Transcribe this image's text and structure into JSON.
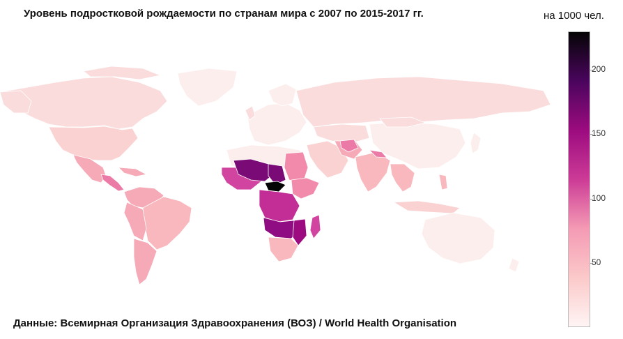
{
  "title": "Уровень подростковой рождаемости по странам мира с 2007 по 2015-2017 гг.",
  "source": "Данные: Всемирная Организация Здравоохранения (ВОЗ) / World Health Organisation",
  "legend": {
    "unit": "на 1000 чел.",
    "ticks": [
      "50",
      "100",
      "150",
      "200"
    ],
    "tick_values": [
      50,
      100,
      150,
      200
    ],
    "range": [
      0,
      230
    ],
    "colors": [
      "#fff4f4",
      "#fbc9c9",
      "#f49ab4",
      "#cc3b96",
      "#9c0b7f",
      "#4a055d",
      "#050505"
    ]
  },
  "map_colors": {
    "land_low": "#fdeeee",
    "land_light": "#fbdcdc",
    "land_mid": "#f8b8bd",
    "land_pink": "#f18aab",
    "land_magenta": "#d145a0",
    "land_purple": "#8f0c82",
    "land_dark": "#4a055d",
    "land_black": "#050505",
    "border": "#ffffff"
  }
}
